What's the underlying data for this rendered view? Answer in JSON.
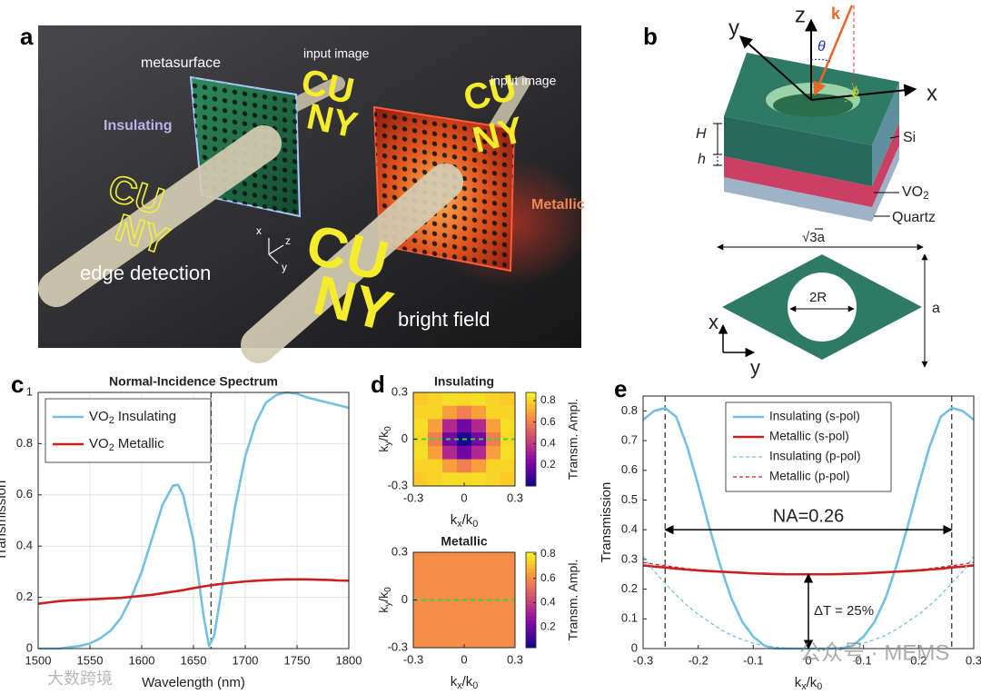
{
  "panel_a": {
    "label": "a",
    "metasurface": "metasurface",
    "input_image": "input image",
    "insulating": "Insulating",
    "edge_detection": "edge detection",
    "metallic": "Metallic",
    "bright_field": "bright field",
    "letters": [
      "CU",
      "NY"
    ],
    "axes": [
      "x",
      "z",
      "y"
    ]
  },
  "panel_b": {
    "label": "b",
    "axes_3d": [
      "z",
      "y",
      "x"
    ],
    "k": "k",
    "theta": "θ",
    "phi": "ϕ",
    "H": "H",
    "h": "h",
    "si": "Si",
    "vo2": [
      "VO",
      "2"
    ],
    "quartz": "Quartz",
    "width": "√3a",
    "hole": "2R",
    "height": "a",
    "axes_2d": [
      "x",
      "y"
    ]
  },
  "chart_data": [
    {
      "type": "line",
      "panel": "c",
      "title": "Normal-Incidence Spectrum",
      "xlabel": "Wavelength (nm)",
      "ylabel": "Transmission",
      "x": [
        1500,
        1510,
        1520,
        1530,
        1540,
        1550,
        1560,
        1570,
        1580,
        1590,
        1600,
        1610,
        1620,
        1630,
        1635,
        1640,
        1650,
        1660,
        1665,
        1670,
        1680,
        1690,
        1700,
        1710,
        1720,
        1730,
        1740,
        1750,
        1760,
        1770,
        1780,
        1790,
        1800
      ],
      "series": [
        {
          "name": [
            "VO",
            "2",
            " Insulating"
          ],
          "color": "#74c0e0",
          "style": "solid",
          "values": [
            0,
            0,
            0,
            0.005,
            0.01,
            0.02,
            0.04,
            0.07,
            0.12,
            0.2,
            0.3,
            0.43,
            0.56,
            0.635,
            0.64,
            0.6,
            0.42,
            0.12,
            0.01,
            0.05,
            0.3,
            0.55,
            0.75,
            0.88,
            0.96,
            0.99,
            1.0,
            0.995,
            0.98,
            0.97,
            0.96,
            0.95,
            0.94
          ]
        },
        {
          "name": [
            "VO",
            "2",
            " Metallic"
          ],
          "color": "#cc1f1f",
          "style": "solid",
          "values": [
            0.175,
            0.18,
            0.185,
            0.188,
            0.19,
            0.192,
            0.194,
            0.196,
            0.198,
            0.202,
            0.206,
            0.21,
            0.216,
            0.222,
            0.225,
            0.228,
            0.236,
            0.243,
            0.246,
            0.249,
            0.254,
            0.258,
            0.262,
            0.265,
            0.267,
            0.269,
            0.27,
            0.27,
            0.27,
            0.269,
            0.268,
            0.266,
            0.265
          ]
        }
      ],
      "xlim": [
        1500,
        1800
      ],
      "ylim": [
        0,
        1
      ],
      "xticks": [
        1500,
        1550,
        1600,
        1650,
        1700,
        1750,
        1800
      ],
      "yticks": [
        0,
        0.2,
        0.4,
        0.6,
        0.8,
        1
      ],
      "grid": true,
      "legend": "upper left",
      "vlines": [
        1667
      ]
    },
    {
      "type": "heatmap",
      "panel": "d",
      "title": "Insulating",
      "xlabel": [
        "k",
        "x",
        "/k",
        "0"
      ],
      "ylabel": [
        "k",
        "y",
        "/k",
        "0"
      ],
      "z": [
        [
          0.78,
          0.8,
          0.82,
          0.81,
          0.82,
          0.8,
          0.78
        ],
        [
          0.8,
          0.8,
          0.68,
          0.6,
          0.68,
          0.8,
          0.8
        ],
        [
          0.82,
          0.68,
          0.35,
          0.2,
          0.35,
          0.68,
          0.82
        ],
        [
          0.81,
          0.6,
          0.2,
          0.03,
          0.2,
          0.6,
          0.81
        ],
        [
          0.82,
          0.68,
          0.35,
          0.2,
          0.35,
          0.68,
          0.82
        ],
        [
          0.8,
          0.8,
          0.68,
          0.6,
          0.68,
          0.8,
          0.8
        ],
        [
          0.78,
          0.8,
          0.82,
          0.81,
          0.82,
          0.8,
          0.78
        ]
      ],
      "xlim": [
        -0.3,
        0.3
      ],
      "ylim": [
        -0.3,
        0.3
      ],
      "xticks": [
        -0.3,
        0,
        0.3
      ],
      "yticks": [
        -0.3,
        0,
        0.3
      ],
      "clim": [
        0.005,
        0.876
      ],
      "cticks": [
        0.2,
        0.4,
        0.6,
        0.8
      ],
      "colorbar_label": "Transm. Ampl.",
      "colormap": "plasma",
      "hline": 0,
      "hline_color": "#3fd23f"
    },
    {
      "type": "heatmap",
      "title": "Metallic",
      "xlabel": [
        "k",
        "x",
        "/k",
        "0"
      ],
      "ylabel": [
        "k",
        "y",
        "/k",
        "0"
      ],
      "z": [
        [
          0.6,
          0.6,
          0.6,
          0.6,
          0.6,
          0.6,
          0.6
        ],
        [
          0.6,
          0.6,
          0.6,
          0.6,
          0.6,
          0.6,
          0.6
        ],
        [
          0.6,
          0.6,
          0.6,
          0.6,
          0.6,
          0.6,
          0.6
        ],
        [
          0.6,
          0.6,
          0.6,
          0.6,
          0.6,
          0.6,
          0.6
        ],
        [
          0.6,
          0.6,
          0.6,
          0.6,
          0.6,
          0.6,
          0.6
        ],
        [
          0.6,
          0.6,
          0.6,
          0.6,
          0.6,
          0.6,
          0.6
        ],
        [
          0.6,
          0.6,
          0.6,
          0.6,
          0.6,
          0.6,
          0.6
        ]
      ],
      "xlim": [
        -0.3,
        0.3
      ],
      "ylim": [
        -0.3,
        0.3
      ],
      "xticks": [
        -0.3,
        0,
        0.3
      ],
      "yticks": [
        -0.3,
        0,
        0.3
      ],
      "clim": [
        0.03,
        0.815
      ],
      "cticks": [
        0.2,
        0.4,
        0.6,
        0.8
      ],
      "colorbar_label": "Transm. Ampl.",
      "colormap": "plasma",
      "hline": 0,
      "hline_color": "#3fd23f"
    },
    {
      "type": "line",
      "panel": "e",
      "xlabel": [
        "k",
        "x",
        "/k",
        "0"
      ],
      "ylabel": "Transmission",
      "x": [
        -0.3,
        -0.28,
        -0.26,
        -0.24,
        -0.22,
        -0.2,
        -0.18,
        -0.16,
        -0.14,
        -0.12,
        -0.1,
        -0.08,
        -0.06,
        -0.04,
        -0.02,
        0,
        0.02,
        0.04,
        0.06,
        0.08,
        0.1,
        0.12,
        0.14,
        0.16,
        0.18,
        0.2,
        0.22,
        0.24,
        0.26,
        0.28,
        0.3
      ],
      "series": [
        {
          "name": "Insulating (s-pol)",
          "color": "#74c0e0",
          "style": "solid",
          "values": [
            0.77,
            0.8,
            0.81,
            0.78,
            0.68,
            0.55,
            0.41,
            0.28,
            0.17,
            0.09,
            0.04,
            0.01,
            0,
            0,
            0,
            0,
            0,
            0,
            0,
            0.01,
            0.04,
            0.09,
            0.17,
            0.28,
            0.41,
            0.55,
            0.68,
            0.78,
            0.81,
            0.8,
            0.77
          ]
        },
        {
          "name": "Metallic (s-pol)",
          "color": "#cc1f1f",
          "style": "solid",
          "values": [
            0.28,
            0.276,
            0.273,
            0.269,
            0.266,
            0.263,
            0.261,
            0.259,
            0.257,
            0.255,
            0.253,
            0.252,
            0.251,
            0.25,
            0.25,
            0.25,
            0.25,
            0.25,
            0.251,
            0.252,
            0.253,
            0.255,
            0.257,
            0.259,
            0.261,
            0.263,
            0.266,
            0.269,
            0.273,
            0.276,
            0.28
          ]
        },
        {
          "name": "Insulating (p-pol)",
          "color": "#74c0e0",
          "style": "dashed",
          "values": [
            0.31,
            0.26,
            0.22,
            0.18,
            0.145,
            0.115,
            0.09,
            0.065,
            0.045,
            0.03,
            0.018,
            0.01,
            0.005,
            0.002,
            0,
            0,
            0,
            0.002,
            0.005,
            0.01,
            0.018,
            0.03,
            0.045,
            0.065,
            0.09,
            0.115,
            0.145,
            0.18,
            0.22,
            0.26,
            0.31
          ]
        },
        {
          "name": "Metallic (p-pol)",
          "color": "#cc1f1f",
          "style": "dashed",
          "values": [
            0.29,
            0.284,
            0.279,
            0.274,
            0.269,
            0.265,
            0.262,
            0.259,
            0.256,
            0.254,
            0.252,
            0.251,
            0.25,
            0.25,
            0.25,
            0.25,
            0.25,
            0.25,
            0.25,
            0.251,
            0.252,
            0.254,
            0.256,
            0.259,
            0.262,
            0.265,
            0.269,
            0.274,
            0.279,
            0.284,
            0.29
          ]
        }
      ],
      "xlim": [
        -0.3,
        0.3
      ],
      "ylim": [
        0,
        0.85
      ],
      "xticks": [
        -0.3,
        -0.2,
        -0.1,
        0,
        0.1,
        0.2,
        0.3
      ],
      "yticks": [
        0,
        0.1,
        0.2,
        0.3,
        0.4,
        0.5,
        0.6,
        0.7,
        0.8
      ],
      "grid": false,
      "legend": "upper center",
      "vlines": [
        -0.26,
        0.26
      ],
      "annotations": [
        {
          "text": "NA=0.26",
          "x": [
            -0.26,
            0.26
          ],
          "y": 0.4
        },
        {
          "text": "ΔT = 25%",
          "x": 0,
          "y": [
            0,
            0.25
          ]
        }
      ]
    }
  ],
  "watermark": [
    "公众号 · MEMS",
    "大数跨境"
  ]
}
